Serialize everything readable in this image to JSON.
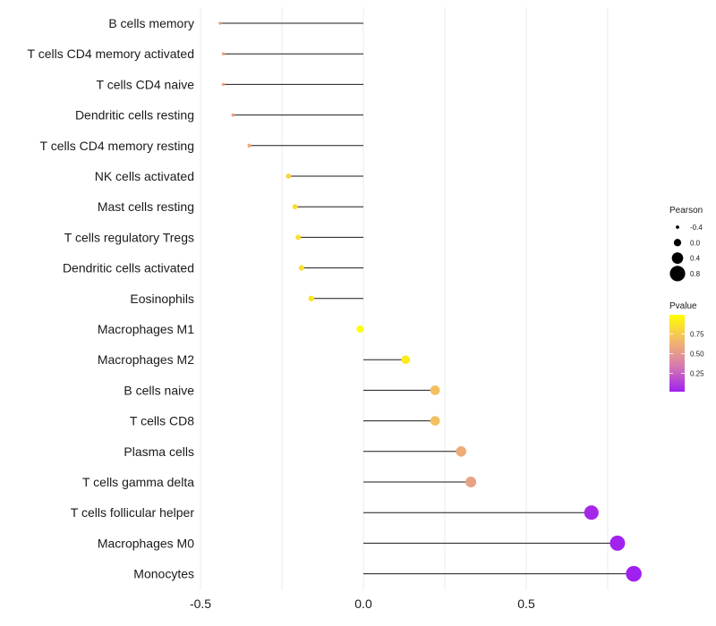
{
  "chart_data": {
    "type": "lollipop",
    "title": "",
    "xlabel": "",
    "ylabel": "",
    "xlim": [
      -0.5,
      0.85
    ],
    "x_ticks": [
      -0.5,
      0.0,
      0.5
    ],
    "x_tick_labels": [
      "-0.5",
      "0.0",
      "0.5"
    ],
    "categories": [
      "B cells memory",
      "T cells CD4 memory activated",
      "T cells CD4 naive",
      "Dendritic cells resting",
      "T cells CD4 memory resting",
      "NK cells activated",
      "Mast cells resting",
      "T cells regulatory  Tregs ",
      "Dendritic cells activated",
      "Eosinophils",
      "Macrophages M1",
      "Macrophages M2",
      "B cells naive",
      "T cells CD8",
      "Plasma cells",
      "T cells gamma delta",
      "T cells follicular helper",
      "Macrophages M0",
      "Monocytes"
    ],
    "pearson": [
      -0.44,
      -0.43,
      -0.43,
      -0.4,
      -0.35,
      -0.23,
      -0.21,
      -0.2,
      -0.19,
      -0.16,
      -0.01,
      0.13,
      0.22,
      0.22,
      0.3,
      0.33,
      0.7,
      0.78,
      0.83
    ],
    "pvalue": [
      0.55,
      0.55,
      0.55,
      0.55,
      0.6,
      0.8,
      0.85,
      0.85,
      0.85,
      0.88,
      0.99,
      0.9,
      0.7,
      0.7,
      0.6,
      0.55,
      0.05,
      0.03,
      0.02
    ],
    "size_legend": {
      "title": "Pearson",
      "values": [
        -0.4,
        0.0,
        0.4,
        0.8
      ],
      "labels": [
        "-0.4",
        "0.0",
        "0.4",
        "0.8"
      ]
    },
    "color_legend": {
      "title": "Pvalue",
      "range": [
        0.02,
        0.99
      ],
      "ticks": [
        0.75,
        0.5,
        0.25
      ],
      "labels": [
        "0.75",
        "0.50",
        "0.25"
      ],
      "colors": [
        "#a020f0",
        "#d67ab0",
        "#f3b86a",
        "#ffff00"
      ]
    }
  }
}
